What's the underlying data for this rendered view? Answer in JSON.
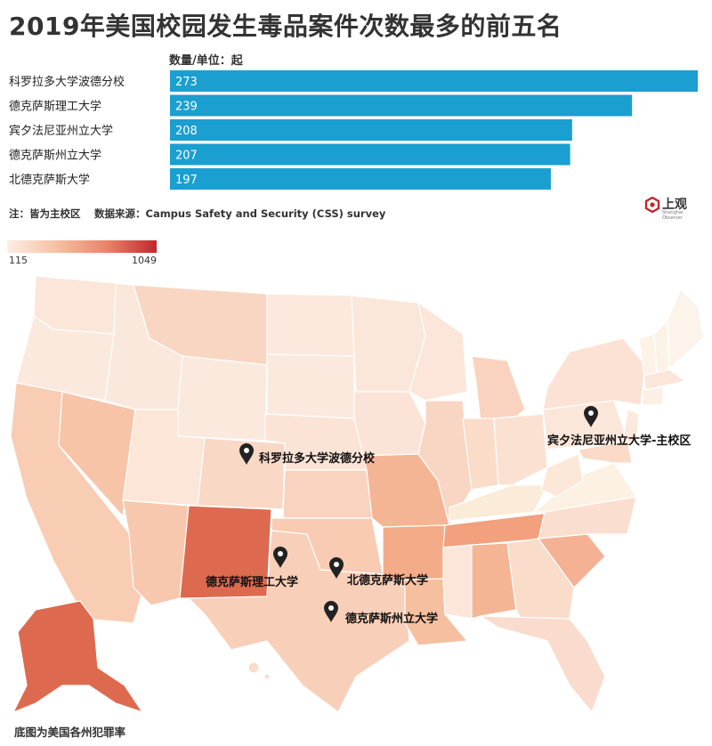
{
  "title": "2019年美国校园发生毒品案件次数最多的前五名",
  "unit_label": "数量/单位：起",
  "note": "注：皆为主校区　 数据来源：Campus Safety and Security (CSS) survey",
  "logo": {
    "text": "上观",
    "sub": "Shanghai Observer"
  },
  "legend": {
    "min": "115",
    "max": "1049",
    "colors": [
      "#fbeee4",
      "#f6c0a3",
      "#e8846a",
      "#c0282d"
    ]
  },
  "footer": "底图为美国各州犯罪率",
  "colors": {
    "bar": "#1a9fd0"
  },
  "chart_data": {
    "type": "bar",
    "orientation": "horizontal",
    "categories": [
      "科罗拉多大学波德分校",
      "德克萨斯理工大学",
      "宾夕法尼亚州立大学",
      "德克萨斯州立大学",
      "北德克萨斯大学"
    ],
    "values": [
      273,
      239,
      208,
      207,
      197
    ],
    "title": "2019年美国校园发生毒品案件次数最多的前五名",
    "xlabel": "数量/单位：起",
    "xlim": [
      0,
      273
    ]
  },
  "map_markers": [
    {
      "label": "科罗拉多大学波德分校"
    },
    {
      "label": "宾夕法尼亚州立大学-主校区"
    },
    {
      "label": "德克萨斯理工大学"
    },
    {
      "label": "北德克萨斯大学"
    },
    {
      "label": "德克萨斯州立大学"
    }
  ]
}
